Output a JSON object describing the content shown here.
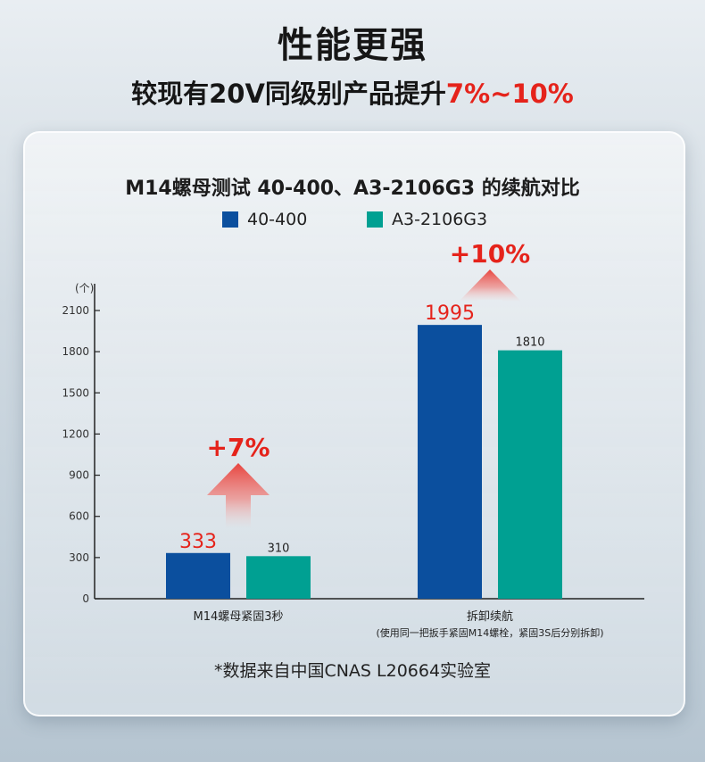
{
  "header": {
    "title": "性能更强",
    "subtitle_prefix": "较现有20V同级别产品提升",
    "subtitle_accent": "7%~10%"
  },
  "chart_data": {
    "type": "bar",
    "title": "M14螺母测试 40-400、A3-2106G3 的续航对比",
    "ylabel": "(个)",
    "ylim": [
      0,
      2100
    ],
    "yticks": [
      0,
      300,
      600,
      900,
      1200,
      1500,
      1800,
      2100
    ],
    "categories": [
      "M14螺母紧固3秒",
      "拆卸续航"
    ],
    "category_notes": [
      "",
      "(使用同一把扳手紧固M14螺栓，紧固3S后分别拆卸)"
    ],
    "series": [
      {
        "name": "40-400",
        "values": [
          333,
          1995
        ],
        "color": "#0b4f9e"
      },
      {
        "name": "A3-2106G3",
        "values": [
          310,
          1810
        ],
        "color": "#00a092"
      }
    ],
    "annotations": [
      "+7%",
      "+10%"
    ],
    "legend": "top-center",
    "grid": false
  },
  "colors": {
    "accent": "#e5231b",
    "arrow": "#e8443e"
  },
  "footnote": "*数据来自中国CNAS L20664实验室"
}
